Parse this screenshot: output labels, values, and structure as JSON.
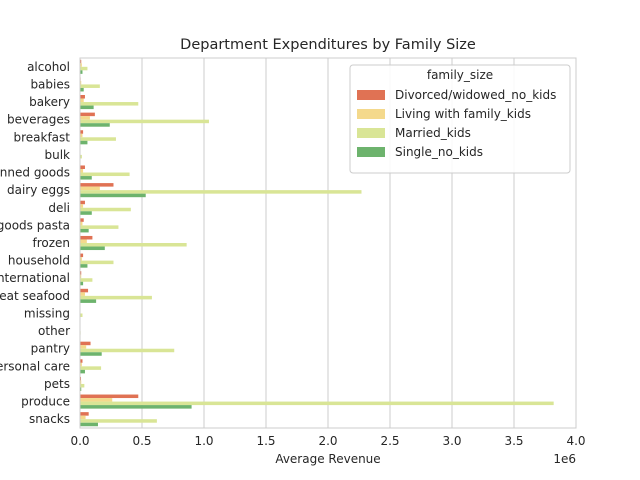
{
  "chart_data": {
    "type": "bar",
    "orientation": "horizontal",
    "title": "Department Expenditures by Family Size",
    "xlabel": "Average Revenue",
    "ylabel": "",
    "x_scale_label": "1e6",
    "xlim": [
      0,
      4000000
    ],
    "x_ticks": [
      0,
      500000,
      1000000,
      1500000,
      2000000,
      2500000,
      3000000,
      3500000,
      4000000
    ],
    "x_tick_labels": [
      "0.0",
      "0.5",
      "1.0",
      "1.5",
      "2.0",
      "2.5",
      "3.0",
      "3.5",
      "4.0"
    ],
    "grid": true,
    "legend_title": "family_size",
    "legend_position": "top-right",
    "categories": [
      "alcohol",
      "babies",
      "bakery",
      "beverages",
      "breakfast",
      "bulk",
      "canned goods",
      "dairy eggs",
      "deli",
      "dry goods pasta",
      "frozen",
      "household",
      "international",
      "meat seafood",
      "missing",
      "other",
      "pantry",
      "personal care",
      "pets",
      "produce",
      "snacks"
    ],
    "series": [
      {
        "name": "Divorced/widowed_no_kids",
        "color": "#e07254",
        "values": [
          10000,
          5000,
          40000,
          120000,
          25000,
          3000,
          40000,
          270000,
          40000,
          30000,
          100000,
          25000,
          10000,
          65000,
          3000,
          1000,
          85000,
          20000,
          8000,
          470000,
          70000
        ]
      },
      {
        "name": "Living with family_kids",
        "color": "#f4d98c",
        "values": [
          15000,
          10000,
          30000,
          80000,
          20000,
          3000,
          25000,
          160000,
          25000,
          20000,
          55000,
          15000,
          10000,
          40000,
          2000,
          1000,
          50000,
          15000,
          10000,
          260000,
          45000
        ]
      },
      {
        "name": "Married_kids",
        "color": "#d9e596",
        "values": [
          60000,
          160000,
          470000,
          1040000,
          290000,
          15000,
          400000,
          2270000,
          410000,
          310000,
          860000,
          270000,
          100000,
          580000,
          20000,
          5000,
          760000,
          170000,
          35000,
          3820000,
          620000
        ]
      },
      {
        "name": "Single_no_kids",
        "color": "#6db36d",
        "values": [
          20000,
          30000,
          110000,
          240000,
          60000,
          3000,
          95000,
          530000,
          95000,
          70000,
          200000,
          60000,
          25000,
          130000,
          3000,
          1000,
          175000,
          40000,
          10000,
          900000,
          145000
        ]
      }
    ]
  }
}
